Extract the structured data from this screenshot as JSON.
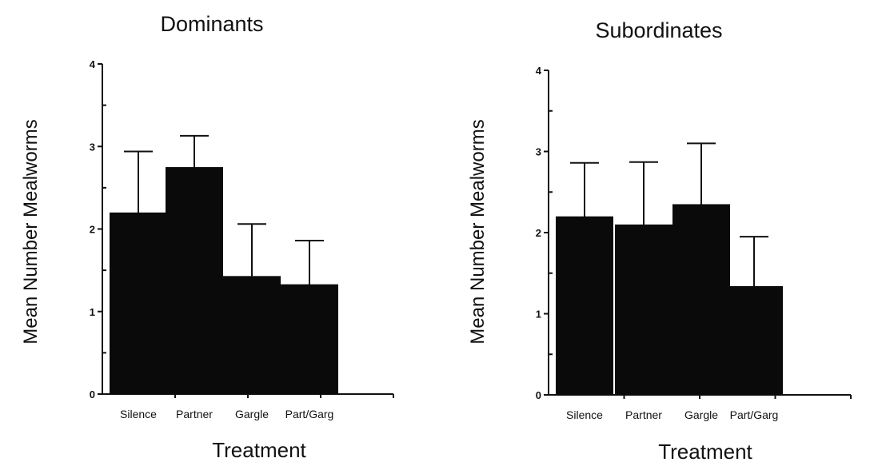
{
  "chart_data": [
    {
      "type": "bar",
      "title": "Dominants",
      "xlabel": "Treatment",
      "ylabel": "Mean Number Mealworms",
      "ylim": [
        0,
        4
      ],
      "yticks": [
        "0",
        "1",
        "2",
        "3",
        "4"
      ],
      "categories": [
        "Silence",
        "Partner",
        "Gargle",
        "Part/Garg"
      ],
      "values": [
        2.2,
        2.75,
        1.43,
        1.33
      ],
      "error_upper": [
        2.94,
        3.13,
        2.06,
        1.86
      ],
      "colors": {
        "bar": "#0a0a0a"
      },
      "grid": false,
      "legend": "none"
    },
    {
      "type": "bar",
      "title": "Subordinates",
      "xlabel": "Treatment",
      "ylabel": "Mean Number Mealworms",
      "ylim": [
        0,
        4
      ],
      "yticks": [
        "0",
        "1",
        "2",
        "3",
        "4"
      ],
      "categories": [
        "Silence",
        "Partner",
        "Gargle",
        "Part/Garg"
      ],
      "values": [
        2.2,
        2.1,
        2.35,
        1.34
      ],
      "error_upper": [
        2.86,
        2.87,
        3.1,
        1.95
      ],
      "colors": {
        "bar": "#0a0a0a"
      },
      "grid": false,
      "legend": "none"
    }
  ]
}
